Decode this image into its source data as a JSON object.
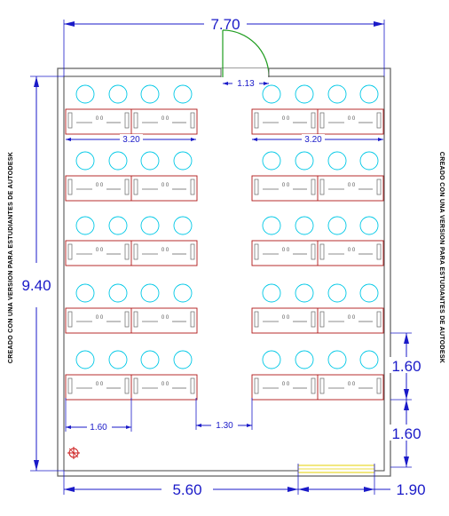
{
  "dimensions": {
    "total_width": "7.70",
    "total_height": "9.40",
    "door_width": "1.13",
    "desk_pair_left": "3.20",
    "desk_pair_right": "3.20",
    "row_spacing_1": "1.60",
    "row_spacing_2": "1.60",
    "desk_width": "1.60",
    "aisle_width": "1.30",
    "bottom_left": "5.60",
    "bottom_right": "1.90"
  },
  "watermark": {
    "left": "CREADO CON UNA VERSION PARA ESTUDIANTES DE AUTODESK",
    "right": "CREADO CON UNA VERSION PARA ESTUDIANTES DE AUTODESK"
  },
  "legend": {
    "desk_label": "0 0"
  },
  "colors": {
    "wall": "#666666",
    "desk_outline": "#b01818",
    "chair": "#00c8e6",
    "dimension": "#1a1ac8",
    "door": "#1e9c1e",
    "window": "#e6d200"
  },
  "layout_summary": {
    "rows": 5,
    "desk_groups_per_row": 2,
    "chairs_per_group": 4
  }
}
